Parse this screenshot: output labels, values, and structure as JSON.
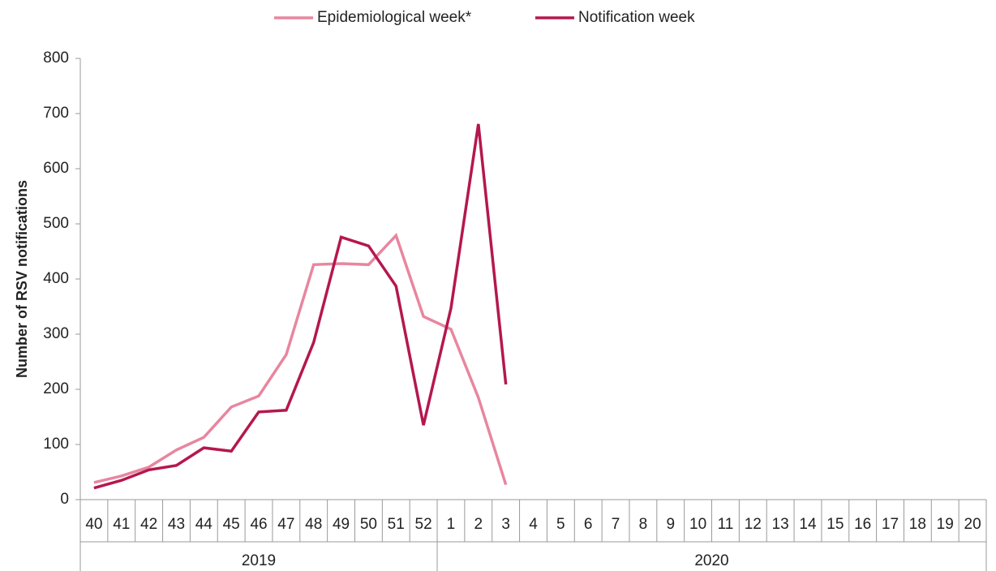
{
  "chart_data": {
    "type": "line",
    "y_label": "Number of RSV notifications",
    "categories": [
      "40",
      "41",
      "42",
      "43",
      "44",
      "45",
      "46",
      "47",
      "48",
      "49",
      "50",
      "51",
      "52",
      "1",
      "2",
      "3",
      "4",
      "5",
      "6",
      "7",
      "8",
      "9",
      "10",
      "11",
      "12",
      "13",
      "14",
      "15",
      "16",
      "17",
      "18",
      "19",
      "20"
    ],
    "x_groups": [
      "2019",
      "2020"
    ],
    "series": [
      {
        "name": "Epidemiological week*",
        "color": "#e8869f",
        "values": [
          31,
          43,
          59,
          90,
          113,
          168,
          188,
          263,
          426,
          428,
          426,
          479,
          332,
          309,
          185,
          27,
          null,
          null,
          null,
          null,
          null,
          null,
          null,
          null,
          null,
          null,
          null,
          null,
          null,
          null,
          null,
          null,
          null
        ]
      },
      {
        "name": "Notification week",
        "color": "#b5174f",
        "values": [
          21,
          35,
          54,
          62,
          94,
          88,
          159,
          162,
          285,
          476,
          460,
          387,
          135,
          347,
          681,
          209,
          null,
          null,
          null,
          null,
          null,
          null,
          null,
          null,
          null,
          null,
          null,
          null,
          null,
          null,
          null,
          null,
          null
        ]
      }
    ],
    "ylim": [
      0,
      800
    ],
    "yticks": [
      0,
      100,
      200,
      300,
      400,
      500,
      600,
      700,
      800
    ],
    "grid": false,
    "legend": "top"
  }
}
